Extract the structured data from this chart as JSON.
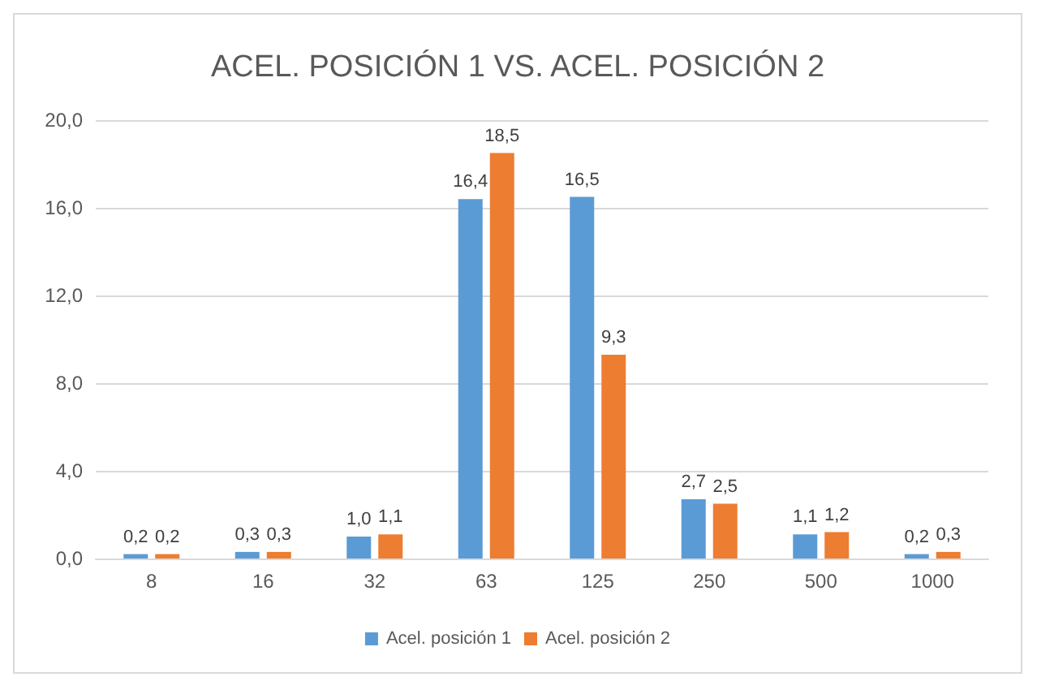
{
  "chart_data": {
    "type": "bar",
    "title": "ACEL. POSICIÓN 1 VS. ACEL. POSICIÓN 2",
    "categories": [
      "8",
      "16",
      "32",
      "63",
      "125",
      "250",
      "500",
      "1000"
    ],
    "series": [
      {
        "name": "Acel. posición 1",
        "color": "#5b9bd5",
        "values": [
          0.2,
          0.3,
          1.0,
          16.4,
          16.5,
          2.7,
          1.1,
          0.2
        ],
        "value_labels": [
          "0,2",
          "0,3",
          "1,0",
          "16,4",
          "16,5",
          "2,7",
          "1,1",
          "0,2"
        ]
      },
      {
        "name": "Acel. posición 2",
        "color": "#ed7d31",
        "values": [
          0.2,
          0.3,
          1.1,
          18.5,
          9.3,
          2.5,
          1.2,
          0.3
        ],
        "value_labels": [
          "0,2",
          "0,3",
          "1,1",
          "18,5",
          "9,3",
          "2,5",
          "1,2",
          "0,3"
        ]
      }
    ],
    "ylim": [
      0,
      20
    ],
    "yticks": [
      {
        "value": 0,
        "label": "0,0"
      },
      {
        "value": 4,
        "label": "4,0"
      },
      {
        "value": 8,
        "label": "8,0"
      },
      {
        "value": 12,
        "label": "12,0"
      },
      {
        "value": 16,
        "label": "16,0"
      },
      {
        "value": 20,
        "label": "20,0"
      }
    ],
    "grid": "y",
    "legend": "bottom"
  }
}
